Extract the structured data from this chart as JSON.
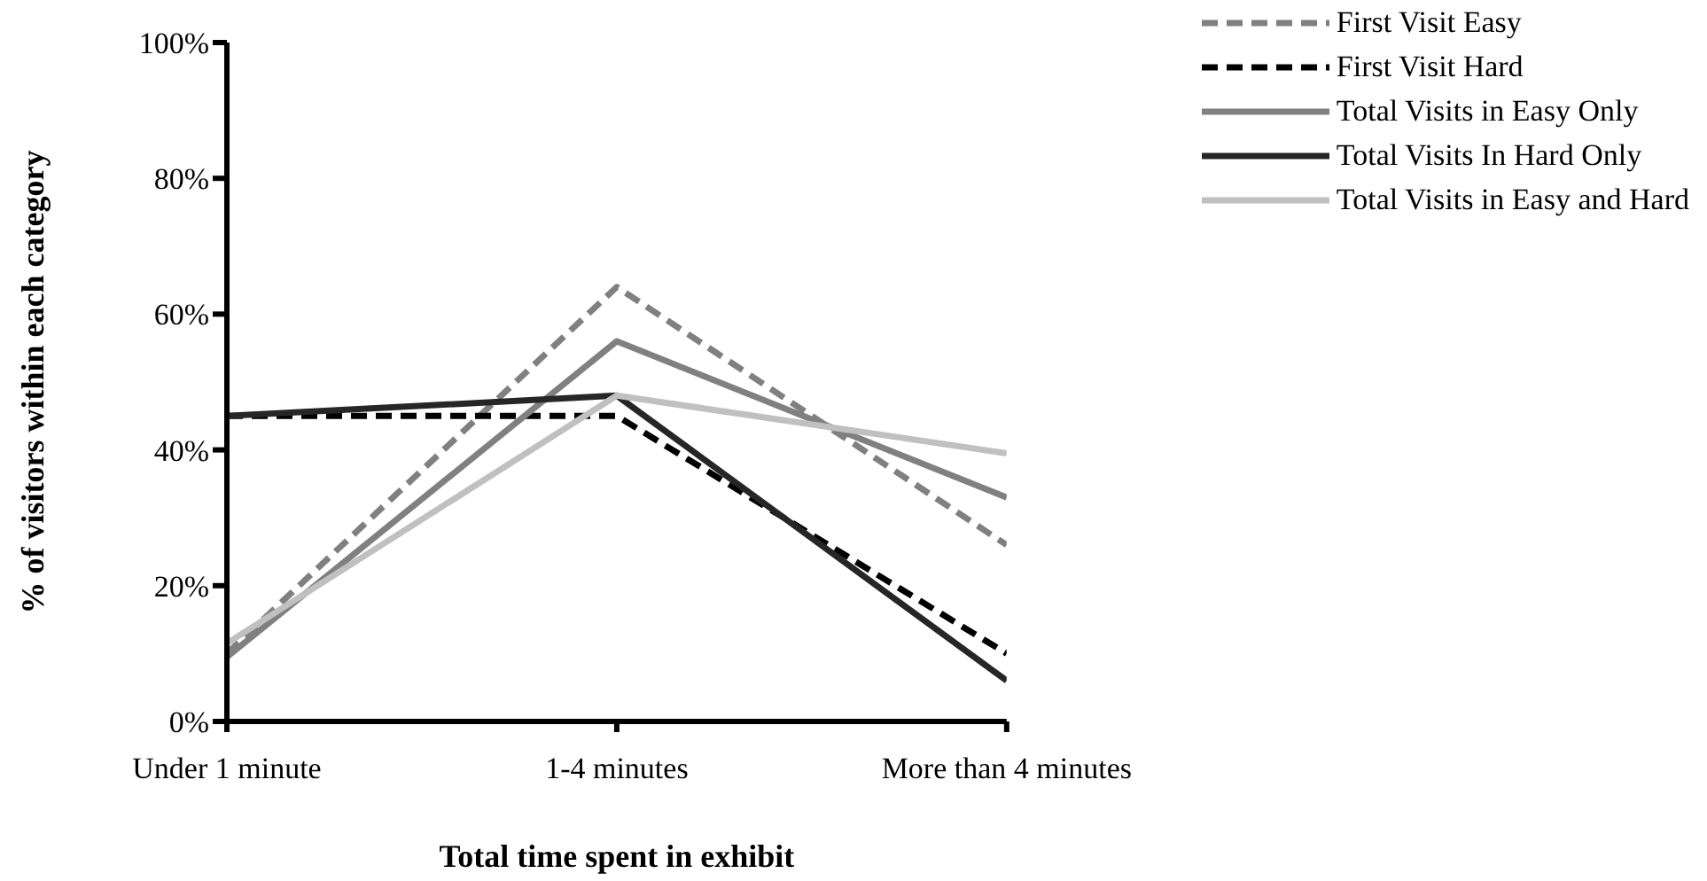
{
  "chart_data": {
    "type": "line",
    "xlabel": "Total time spent in exhibit",
    "ylabel": "% of visitors within each category",
    "categories": [
      "Under 1 minute",
      "1-4 minutes",
      "More than 4 minutes"
    ],
    "series": [
      {
        "name": "First Visit Easy",
        "color": "#808080",
        "line_style": "dashed",
        "values": [
          10,
          64,
          26
        ]
      },
      {
        "name": "First Visit Hard",
        "color": "#000000",
        "line_style": "dashed",
        "values": [
          45,
          45,
          10
        ]
      },
      {
        "name": "Total Visits in Easy Only",
        "color": "#808080",
        "line_style": "solid",
        "values": [
          9.5,
          56,
          33
        ]
      },
      {
        "name": "Total Visits In Hard Only",
        "color": "#262626",
        "line_style": "solid",
        "values": [
          45,
          48,
          6
        ]
      },
      {
        "name": "Total Visits in Easy and Hard",
        "color": "#c0c0c0",
        "line_style": "solid",
        "values": [
          11.5,
          48,
          39.5
        ]
      }
    ],
    "ylim": [
      0,
      100
    ],
    "yticks": [
      {
        "value": 0,
        "label": "0%"
      },
      {
        "value": 20,
        "label": "20%"
      },
      {
        "value": 40,
        "label": "40%"
      },
      {
        "value": 60,
        "label": "60%"
      },
      {
        "value": 80,
        "label": "80%"
      },
      {
        "value": 100,
        "label": "100%"
      }
    ],
    "grid": false,
    "legend": "top right",
    "marker": "none"
  }
}
